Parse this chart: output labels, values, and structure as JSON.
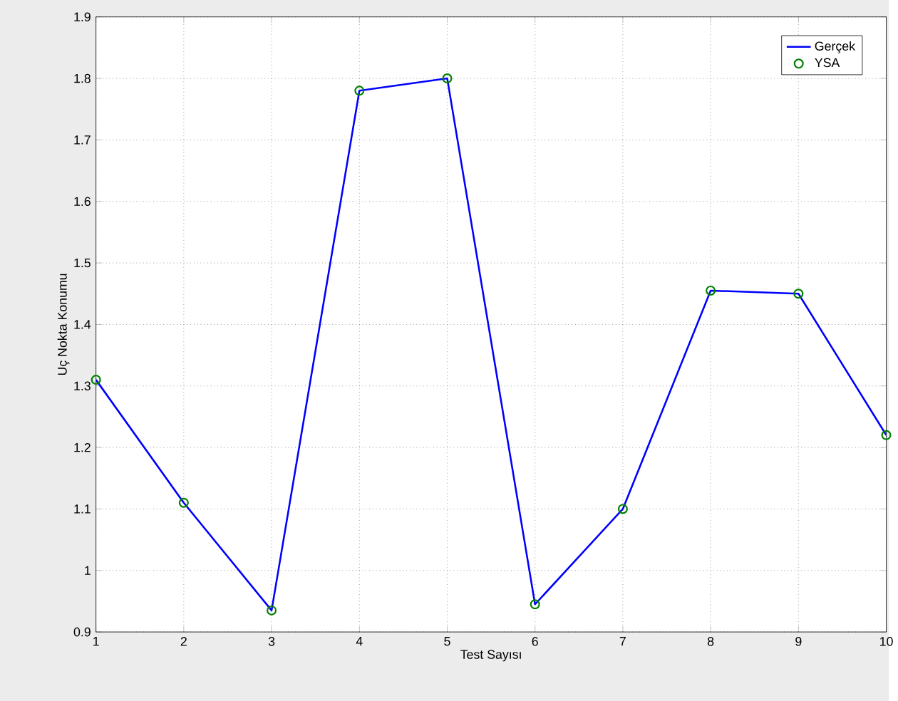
{
  "chart_data": {
    "type": "line",
    "xlabel": "Test Sayısı",
    "ylabel": "Uç Nokta Konumu",
    "x": [
      1,
      2,
      3,
      4,
      5,
      6,
      7,
      8,
      9,
      10
    ],
    "series": [
      {
        "name": "Gerçek",
        "color": "#0000ff",
        "line_style": "solid",
        "marker": "none",
        "values": [
          1.31,
          1.11,
          0.935,
          1.78,
          1.8,
          0.945,
          1.1,
          1.455,
          1.45,
          1.22
        ]
      },
      {
        "name": "YSA",
        "type": "scatter",
        "color": "#008000",
        "marker": "circle",
        "values": [
          1.31,
          1.11,
          0.935,
          1.78,
          1.8,
          0.945,
          1.1,
          1.455,
          1.45,
          1.22
        ]
      }
    ],
    "xlim": [
      1,
      10
    ],
    "ylim": [
      0.9,
      1.9
    ],
    "xticks": [
      1,
      2,
      3,
      4,
      5,
      6,
      7,
      8,
      9,
      10
    ],
    "yticks": [
      0.9,
      1,
      1.1,
      1.2,
      1.3,
      1.4,
      1.5,
      1.6,
      1.7,
      1.8,
      1.9
    ],
    "grid": true,
    "legend": "top right"
  }
}
